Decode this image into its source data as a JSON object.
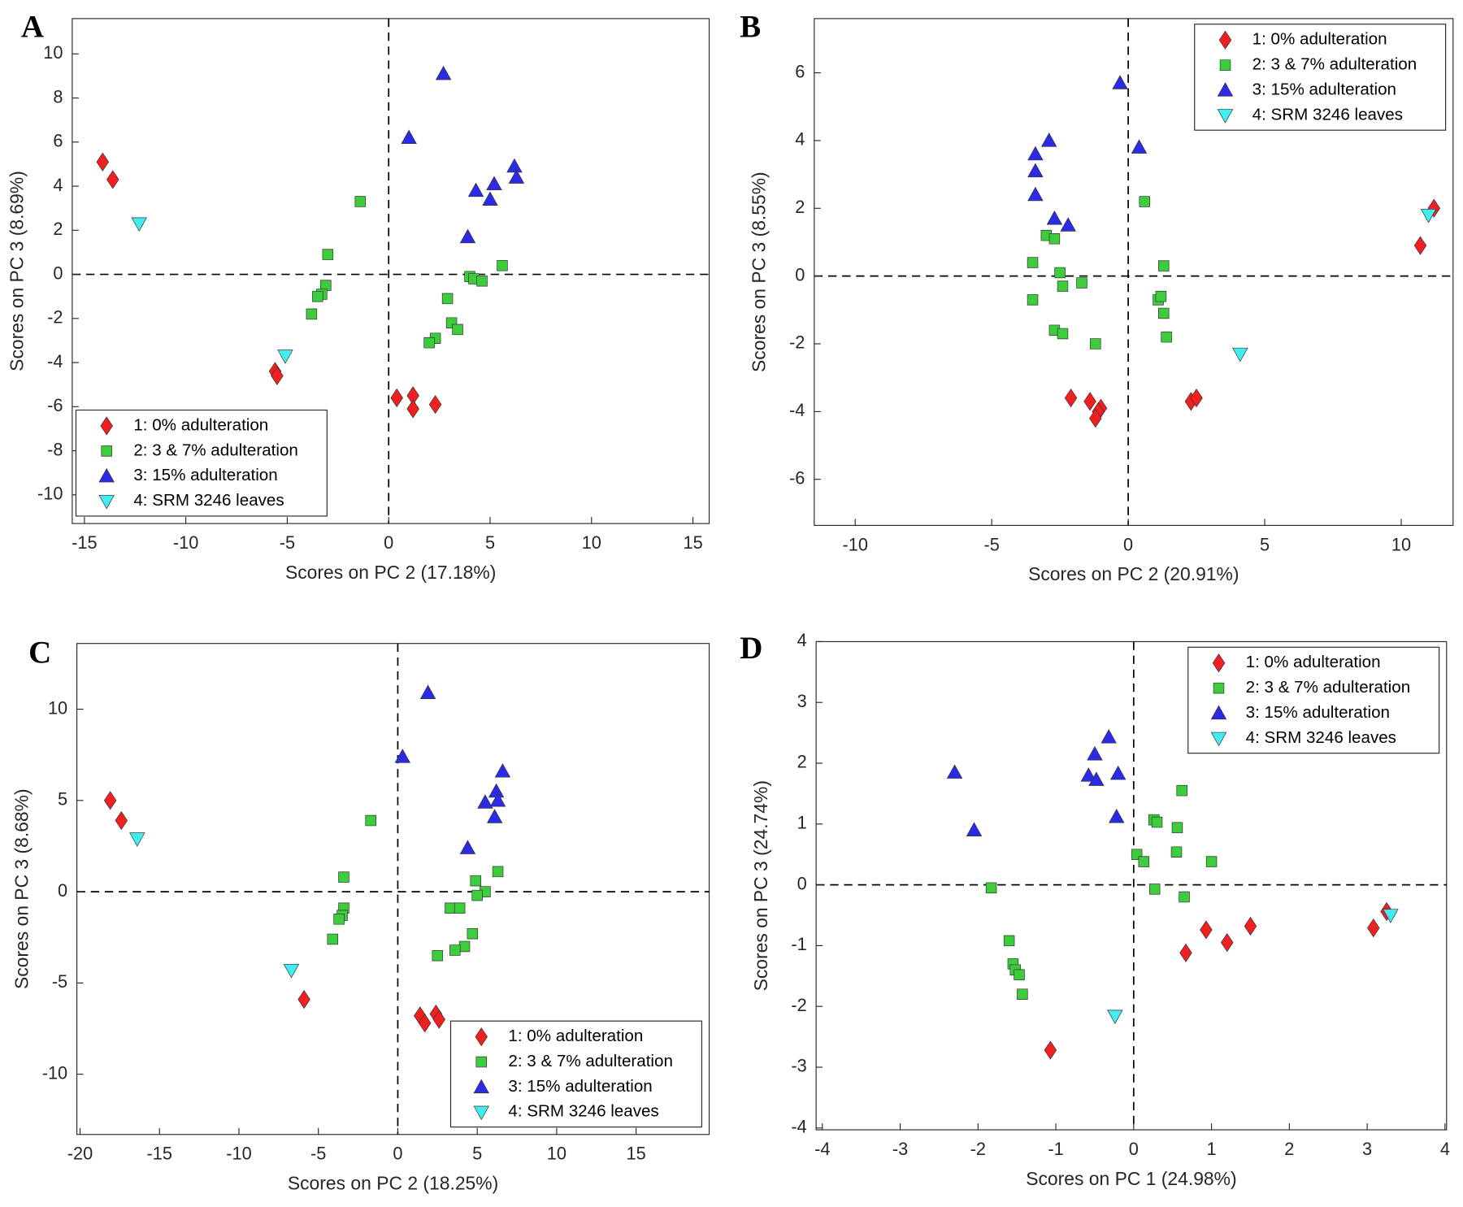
{
  "chart_data": [
    {
      "type": "scatter",
      "label": "A",
      "xlabel": "Scores on PC 2 (17.18%)",
      "ylabel": "Scores on PC 3 (8.69%)",
      "xlim": [
        -15.6,
        15.8
      ],
      "ylim": [
        -11.3,
        11.6
      ],
      "xticks": [
        -15,
        -10,
        -5,
        0,
        5,
        10,
        15
      ],
      "yticks": [
        -10,
        -8,
        -6,
        -4,
        -2,
        0,
        2,
        4,
        6,
        8,
        10
      ],
      "legend": "lower left",
      "series": [
        {
          "name": "1: 0% adulteration",
          "color": "#f02020",
          "marker": "diamond",
          "x": [
            -14.1,
            -13.6,
            -5.6,
            -5.5,
            0.4,
            1.2,
            1.2,
            2.3
          ],
          "y": [
            5.1,
            4.3,
            -4.4,
            -4.6,
            -5.6,
            -5.5,
            -6.1,
            -5.9
          ]
        },
        {
          "name": "2: 3 & 7% adulteration",
          "color": "#3ccc3c",
          "marker": "square",
          "x": [
            -1.4,
            -3.0,
            -3.1,
            -3.3,
            -3.5,
            -3.8,
            2.9,
            4.0,
            4.2,
            4.6,
            5.6,
            3.1,
            3.4,
            2.3,
            2.0
          ],
          "y": [
            3.3,
            0.9,
            -0.5,
            -0.9,
            -1.0,
            -1.8,
            -1.1,
            -0.1,
            -0.2,
            -0.3,
            0.4,
            -2.2,
            -2.5,
            -2.9,
            -3.1
          ]
        },
        {
          "name": "3: 15% adulteration",
          "color": "#2b2be6",
          "marker": "triangle-up",
          "x": [
            2.7,
            1.0,
            6.2,
            6.3,
            5.2,
            4.3,
            5.0,
            3.9
          ],
          "y": [
            9.1,
            6.2,
            4.9,
            4.4,
            4.1,
            3.8,
            3.4,
            1.7
          ]
        },
        {
          "name": "4: SRM 3246 leaves",
          "color": "#40eef0",
          "marker": "triangle-down",
          "x": [
            -12.3,
            -5.1
          ],
          "y": [
            2.3,
            -3.7
          ]
        }
      ]
    },
    {
      "type": "scatter",
      "label": "B",
      "xlabel": "Scores on PC 2 (20.91%)",
      "ylabel": "Scores on PC 3 (8.55%)",
      "xlim": [
        -11.5,
        11.9
      ],
      "ylim": [
        -7.36,
        7.6
      ],
      "xticks": [
        -10,
        -5,
        0,
        5,
        10
      ],
      "yticks": [
        -6,
        -4,
        -2,
        0,
        2,
        4,
        6
      ],
      "legend": "upper right",
      "series": [
        {
          "name": "1: 0% adulteration",
          "color": "#f02020",
          "marker": "diamond",
          "x": [
            -2.1,
            -1.4,
            -1.0,
            -1.1,
            -1.2,
            2.3,
            2.5,
            10.7,
            11.2
          ],
          "y": [
            -3.6,
            -3.7,
            -3.9,
            -4.0,
            -4.2,
            -3.7,
            -3.6,
            0.9,
            2.0
          ]
        },
        {
          "name": "2: 3 & 7% adulteration",
          "color": "#3ccc3c",
          "marker": "square",
          "x": [
            -3.0,
            -2.7,
            -3.5,
            -2.5,
            -2.4,
            -1.7,
            -3.5,
            -2.7,
            -2.4,
            -1.2,
            0.6,
            1.3,
            1.1,
            1.2,
            1.3,
            1.4
          ],
          "y": [
            1.2,
            1.1,
            0.4,
            0.1,
            -0.3,
            -0.2,
            -0.7,
            -1.6,
            -1.7,
            -2.0,
            2.2,
            0.3,
            -0.7,
            -0.6,
            -1.1,
            -1.8
          ]
        },
        {
          "name": "3: 15% adulteration",
          "color": "#2b2be6",
          "marker": "triangle-up",
          "x": [
            -0.3,
            0.4,
            -2.9,
            -3.4,
            -3.4,
            -3.4,
            -2.7,
            -2.2
          ],
          "y": [
            5.7,
            3.8,
            4.0,
            3.6,
            3.1,
            2.4,
            1.7,
            1.5
          ]
        },
        {
          "name": "4: SRM 3246 leaves",
          "color": "#40eef0",
          "marker": "triangle-down",
          "x": [
            11.0,
            4.1
          ],
          "y": [
            1.8,
            -2.3
          ]
        }
      ]
    },
    {
      "type": "scatter",
      "label": "C",
      "xlabel": "Scores on PC 2 (18.25%)",
      "ylabel": "Scores on PC 3 (8.68%)",
      "xlim": [
        -20.2,
        19.6
      ],
      "ylim": [
        -13.3,
        13.6
      ],
      "xticks": [
        -20,
        -15,
        -10,
        -5,
        0,
        5,
        10,
        15
      ],
      "yticks": [
        -10,
        -5,
        0,
        5,
        10
      ],
      "legend": "lower right",
      "series": [
        {
          "name": "1: 0% adulteration",
          "color": "#f02020",
          "marker": "diamond",
          "x": [
            -18.1,
            -17.4,
            -5.9,
            1.4,
            1.7,
            2.4,
            2.6
          ],
          "y": [
            5.0,
            3.9,
            -5.9,
            -6.8,
            -7.2,
            -6.7,
            -7.0
          ]
        },
        {
          "name": "2: 3 & 7% adulteration",
          "color": "#3ccc3c",
          "marker": "square",
          "x": [
            -1.7,
            -3.4,
            -3.4,
            -3.5,
            -3.7,
            -4.1,
            6.3,
            4.9,
            5.5,
            5.0,
            3.3,
            3.9,
            4.7,
            4.2,
            3.6,
            2.5
          ],
          "y": [
            3.9,
            0.8,
            -0.9,
            -1.3,
            -1.5,
            -2.6,
            1.1,
            0.6,
            0,
            -0.2,
            -0.9,
            -0.9,
            -2.3,
            -3.0,
            -3.2,
            -3.5
          ]
        },
        {
          "name": "3: 15% adulteration",
          "color": "#2b2be6",
          "marker": "triangle-up",
          "x": [
            1.9,
            0.3,
            6.6,
            6.2,
            6.3,
            5.5,
            6.1,
            4.4
          ],
          "y": [
            10.9,
            7.4,
            6.6,
            5.5,
            5.0,
            4.9,
            4.1,
            2.4
          ]
        },
        {
          "name": "4: SRM 3246 leaves",
          "color": "#40eef0",
          "marker": "triangle-down",
          "x": [
            -16.4,
            -6.7
          ],
          "y": [
            2.9,
            -4.3
          ]
        }
      ]
    },
    {
      "type": "scatter",
      "label": "D",
      "xlabel": "Scores on PC 1 (24.98%)",
      "ylabel": "Scores on PC 3 (24.74%)",
      "xlim": [
        -4.08,
        4.02
      ],
      "ylim": [
        -4.03,
        4
      ],
      "xticks": [
        -4,
        -3,
        -2,
        -1,
        0,
        1,
        2,
        3,
        4
      ],
      "yticks": [
        -4,
        -3,
        -2,
        -1,
        0,
        1,
        2,
        3,
        4
      ],
      "legend": "upper right",
      "series": [
        {
          "name": "1: 0% adulteration",
          "color": "#f02020",
          "marker": "diamond",
          "x": [
            -1.07,
            0.67,
            0.93,
            1.2,
            1.5,
            3.08,
            3.25
          ],
          "y": [
            -2.72,
            -1.12,
            -0.74,
            -0.95,
            -0.68,
            -0.71,
            -0.44
          ]
        },
        {
          "name": "2: 3 & 7% adulteration",
          "color": "#3ccc3c",
          "marker": "square",
          "x": [
            -1.83,
            -1.6,
            -1.55,
            -1.52,
            -1.47,
            -1.43,
            0.26,
            0.3,
            0.62,
            0.56,
            0.55,
            0.04,
            0.13,
            1.0,
            0.27,
            0.65
          ],
          "y": [
            -0.05,
            -0.92,
            -1.3,
            -1.4,
            -1.48,
            -1.8,
            1.07,
            1.03,
            1.55,
            0.94,
            0.54,
            0.5,
            0.38,
            0.38,
            -0.07,
            -0.2
          ]
        },
        {
          "name": "3: 15% adulteration",
          "color": "#2b2be6",
          "marker": "triangle-up",
          "x": [
            -2.3,
            -2.05,
            -0.32,
            -0.5,
            -0.58,
            -0.48,
            -0.2,
            -0.22
          ],
          "y": [
            1.85,
            0.9,
            2.43,
            2.15,
            1.8,
            1.73,
            1.83,
            1.12
          ]
        },
        {
          "name": "4: SRM 3246 leaves",
          "color": "#40eef0",
          "marker": "triangle-down",
          "x": [
            3.3,
            -0.24
          ],
          "y": [
            -0.5,
            -2.16
          ]
        }
      ]
    }
  ]
}
